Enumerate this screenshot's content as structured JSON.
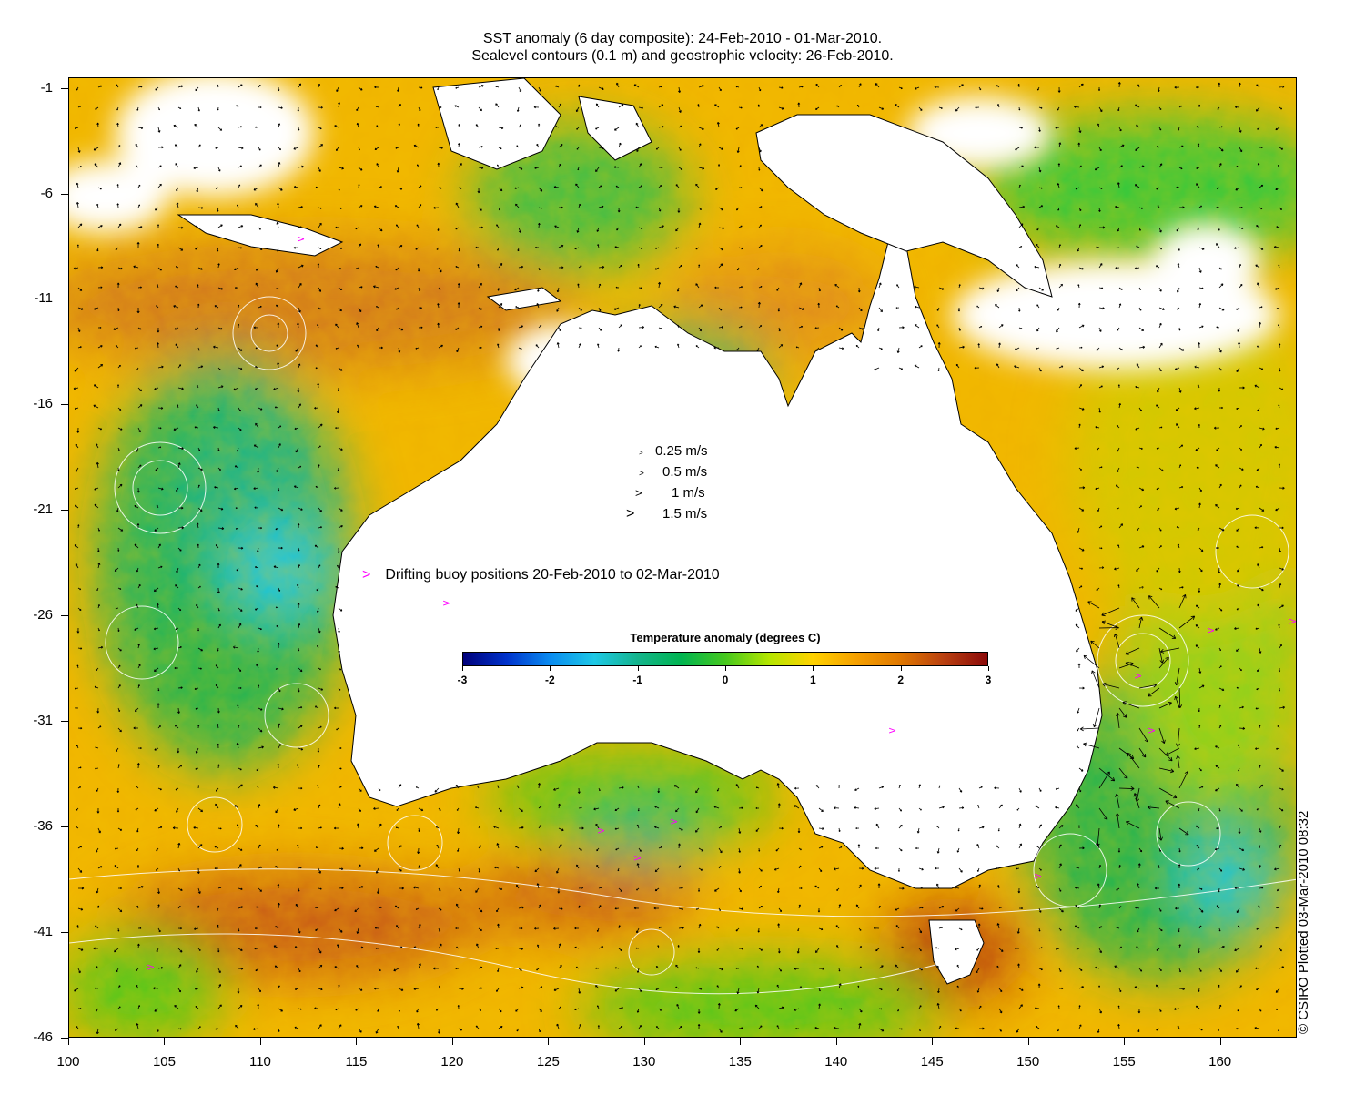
{
  "title_line1": "SST anomaly (6 day composite): 24-Feb-2010 - 01-Mar-2010.",
  "title_line2": "Sealevel contours (0.1 m) and geostrophic velocity: 26-Feb-2010.",
  "copyright": "© CSIRO Plotted 03-Mar-2010 08:32",
  "map": {
    "lon_range": [
      100,
      164
    ],
    "lat_range": [
      -46,
      -0.5
    ],
    "x_ticks": [
      100,
      105,
      110,
      115,
      120,
      125,
      130,
      135,
      140,
      145,
      150,
      155,
      160
    ],
    "y_ticks": [
      -1,
      -6,
      -11,
      -16,
      -21,
      -26,
      -31,
      -36,
      -41,
      -46
    ],
    "land_color": "#ffffff",
    "contour_color": "#ffffff",
    "arrow_color": "#000000",
    "buoy_color": "#ff00ff"
  },
  "velocity_legend": [
    {
      "label": "0.25 m/s",
      "speed": 0.25
    },
    {
      "label": "0.5 m/s",
      "speed": 0.5
    },
    {
      "label": "1 m/s",
      "speed": 1
    },
    {
      "label": "1.5 m/s",
      "speed": 1.5
    }
  ],
  "buoy_legend": {
    "marker": ">",
    "label": "Drifting buoy positions 20-Feb-2010 to 02-Mar-2010"
  },
  "colorbar": {
    "title": "Temperature anomaly (degrees C)",
    "ticks": [
      "-3",
      "-2",
      "-1",
      "0",
      "1",
      "2",
      "3"
    ],
    "range": [
      -3,
      3
    ],
    "colors": [
      "#00007a",
      "#0033cc",
      "#0a8cf0",
      "#1ec8e6",
      "#14b48c",
      "#00b450",
      "#46c81e",
      "#b4e600",
      "#ffd200",
      "#f5a000",
      "#e07800",
      "#b94010",
      "#8b0a0a"
    ]
  }
}
